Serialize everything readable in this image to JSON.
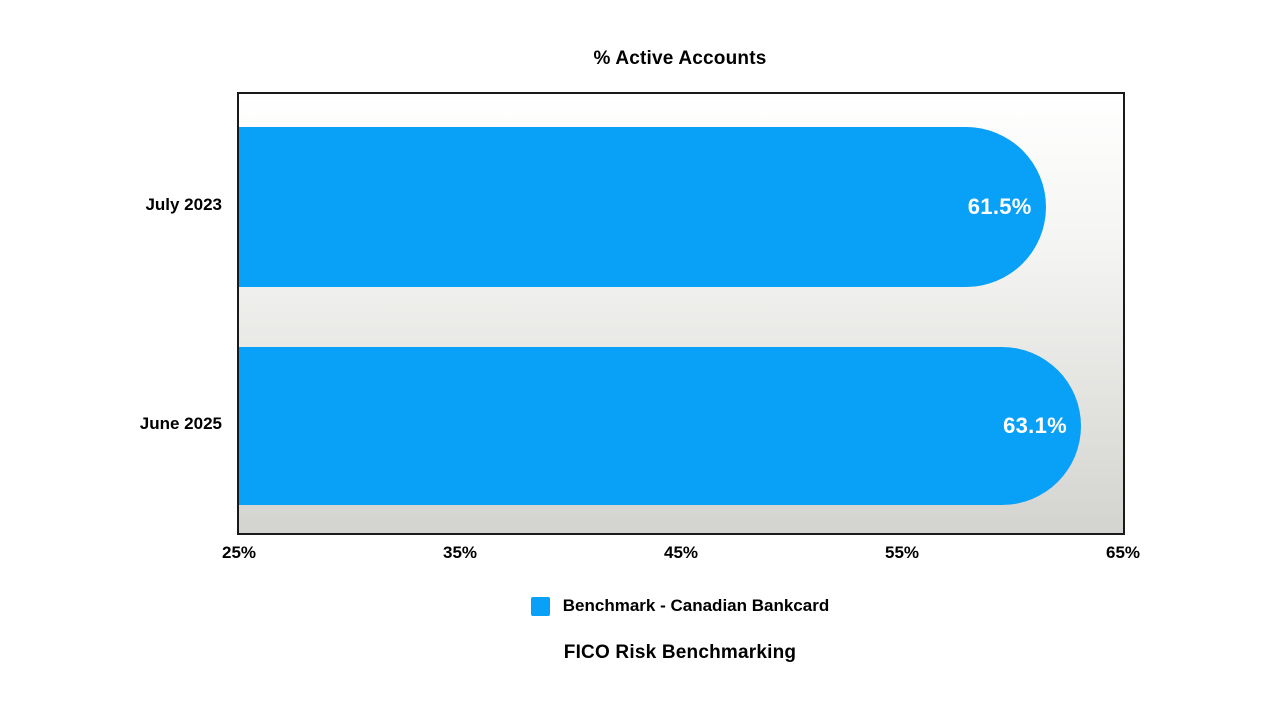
{
  "title": "% Active Accounts",
  "footer_title": "FICO Risk Benchmarking",
  "legend": {
    "label": "Benchmark - Canadian Bankcard"
  },
  "colors": {
    "bar": "#09a0f7",
    "bar_label": "#ffffff",
    "plot_bg_top": "#ffffff",
    "plot_bg_bottom": "#d3d3d0",
    "border": "#1a1a1a",
    "text": "#000000"
  },
  "chart_data": {
    "type": "bar",
    "orientation": "horizontal",
    "title": "% Active Accounts",
    "subtitle": "FICO Risk Benchmarking",
    "categories": [
      "July 2023",
      "June 2025"
    ],
    "values": [
      61.5,
      63.1
    ],
    "value_labels": [
      "61.5%",
      "63.1%"
    ],
    "series": [
      {
        "name": "Benchmark - Canadian Bankcard",
        "values": [
          61.5,
          63.1
        ]
      }
    ],
    "xlabel": "",
    "ylabel": "",
    "xlim": [
      25,
      65
    ],
    "x_ticks": [
      "25%",
      "35%",
      "45%",
      "55%",
      "65%"
    ],
    "x_tick_values": [
      25,
      35,
      45,
      55,
      65
    ],
    "grid": false,
    "legend_position": "bottom",
    "bar_end_style": "rounded-right"
  }
}
